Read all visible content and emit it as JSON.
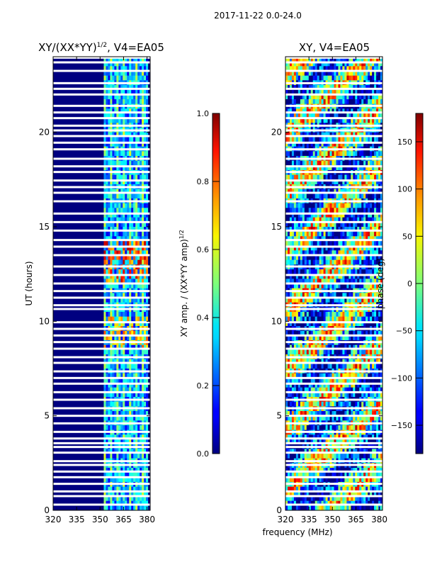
{
  "suptitle": "2017-11-22 0.0-24.0",
  "xlabel_shared": "frequency (MHz)",
  "chart_data": [
    {
      "type": "heatmap",
      "title_main": "XY/(XX*YY)",
      "title_sup": "1/2",
      "title_tail": ", V4=EA05",
      "xlabel": "frequency (MHz)",
      "ylabel": "UT (hours)",
      "xlim": [
        320,
        382
      ],
      "ylim": [
        0,
        24
      ],
      "xticks": [
        320,
        335,
        350,
        365,
        380
      ],
      "yticks": [
        0,
        5,
        10,
        15,
        20
      ],
      "active_band_MHz": [
        352.5,
        380
      ],
      "colorbar": {
        "label_main": "XY amp. / (XX*YY amp)",
        "label_sup": "1/2",
        "range": [
          0.0,
          1.0
        ],
        "ticks": [
          "0.0",
          "0.2",
          "0.4",
          "0.6",
          "0.8",
          "1.0"
        ],
        "colormap": "jet"
      }
    },
    {
      "type": "heatmap",
      "title": "XY, V4=EA05",
      "xlabel": "frequency (MHz)",
      "ylabel": "",
      "xlim": [
        320,
        382
      ],
      "ylim": [
        0,
        24
      ],
      "xticks": [
        320,
        335,
        350,
        365,
        380
      ],
      "yticks": [
        0,
        5,
        10,
        15,
        20
      ],
      "colorbar": {
        "label": "phase (deg)",
        "range": [
          -180,
          180
        ],
        "ticks": [
          "150",
          "100",
          "50",
          "0",
          "−50",
          "−100",
          "−150"
        ],
        "colormap": "jet"
      }
    }
  ],
  "flagged_hours": [
    23.95,
    23.7,
    23.25,
    22.6,
    22.3,
    22.0,
    21.4,
    21.05,
    20.75,
    20.35,
    20.1,
    19.8,
    19.45,
    19.1,
    18.6,
    18.2,
    17.9,
    17.45,
    17.1,
    16.8,
    16.35,
    15.7,
    15.25,
    14.8,
    14.3,
    13.95,
    13.5,
    12.9,
    12.45,
    12.0,
    11.6,
    11.25,
    10.85,
    10.65,
    9.95,
    9.6,
    9.25,
    8.9,
    8.55,
    8.1,
    7.8,
    7.35,
    7.0,
    6.7,
    6.25,
    5.85,
    5.4,
    5.0,
    4.6,
    4.15,
    3.8,
    3.55,
    3.35,
    3.05,
    2.6,
    2.4,
    2.05,
    1.75,
    1.4,
    1.0,
    0.75,
    0.3
  ]
}
